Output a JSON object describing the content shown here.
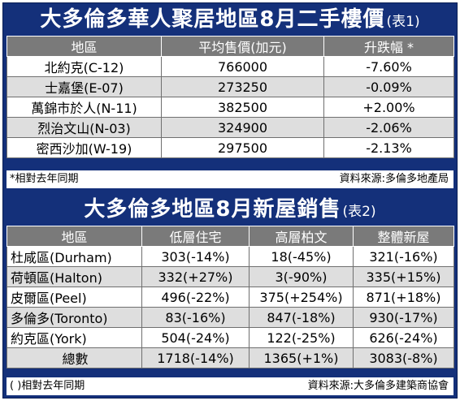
{
  "table1": {
    "title": "大多倫多華人聚居地區8月二手樓價",
    "tag": "(表1)",
    "headers": [
      "地區",
      "平均售價(加元)",
      "升跌幅 *"
    ],
    "rows": [
      [
        "北約克(C-12)",
        "766000",
        "-7.60%"
      ],
      [
        "士嘉堡(E-07)",
        "273250",
        "-0.09%"
      ],
      [
        "萬錦市於人(N-11)",
        "382500",
        "+2.00%"
      ],
      [
        "烈治文山(N-03)",
        "324900",
        "-2.06%"
      ],
      [
        "密西沙加(W-19)",
        "297500",
        "-2.13%"
      ]
    ],
    "note": "*相對去年同期",
    "source": "資料來源:多倫多地產局"
  },
  "table2": {
    "title": "大多倫多地區8月新屋銷售",
    "tag": "(表2)",
    "headers": [
      "地區",
      "低層住宅",
      "高層柏文",
      "整體新屋"
    ],
    "rows": [
      [
        "杜咸區(Durham)",
        "303(-14%)",
        "18(-45%)",
        "321(-16%)"
      ],
      [
        "荷頓區(Halton)",
        "332(+27%)",
        "3(-90%)",
        "335(+15%)"
      ],
      [
        "皮爾區(Peel)",
        "496(-22%)",
        "375(+254%)",
        "871(+18%)"
      ],
      [
        "多倫多(Toronto)",
        "83(-16%)",
        "847(-18%)",
        "930(-17%)"
      ],
      [
        "約克區(York)",
        "504(-24%)",
        "122(-25%)",
        "626(-24%)"
      ],
      [
        "總數",
        "1718(-14%)",
        "1365(+1%)",
        "3083(-8%)"
      ]
    ],
    "note": "( )相對去年同期",
    "source": "資料來源:大多倫多建築商協會"
  }
}
